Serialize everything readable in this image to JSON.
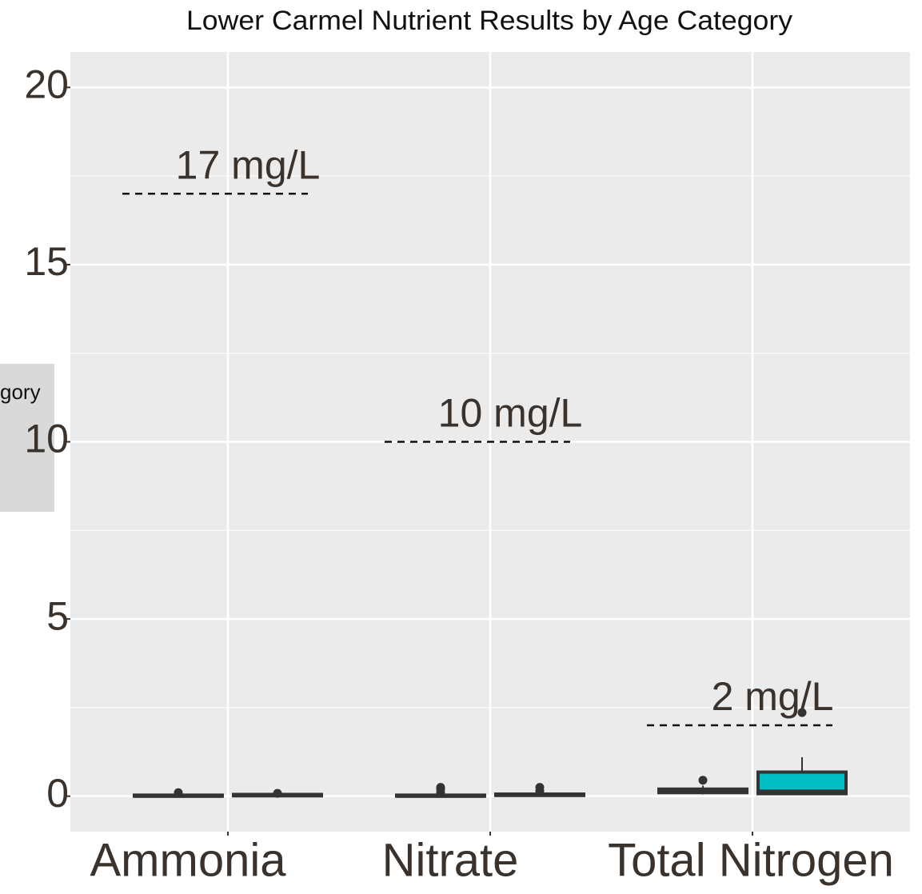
{
  "chart_data": {
    "type": "box",
    "title": "Lower Carmel Nutrient Results by Age Category",
    "legend_title": "gory",
    "categories": [
      "Ammonia",
      "Nitrate",
      "Total Nitrogen"
    ],
    "ylim": [
      -1,
      21
    ],
    "yticks": [
      0,
      5,
      10,
      15,
      20
    ],
    "grid": true,
    "series": [
      {
        "color": "#f8766d",
        "boxes": [
          {
            "whislo": 0,
            "q1": 0,
            "median": 0.01,
            "q3": 0.03,
            "whishi": 0.05,
            "outliers": [
              0.1
            ]
          },
          {
            "whislo": 0,
            "q1": 0,
            "median": 0.01,
            "q3": 0.03,
            "whishi": 0.05,
            "outliers": [
              0.1,
              0.2,
              0.25
            ]
          },
          {
            "whislo": 0.05,
            "q1": 0.1,
            "median": 0.15,
            "q3": 0.2,
            "whishi": 0.3,
            "outliers": [
              0.45
            ]
          }
        ]
      },
      {
        "color": "#00bfc4",
        "boxes": [
          {
            "whislo": 0,
            "q1": 0.01,
            "median": 0.03,
            "q3": 0.05,
            "whishi": 0.07,
            "outliers": [
              0.08
            ]
          },
          {
            "whislo": 0,
            "q1": 0.02,
            "median": 0.04,
            "q3": 0.06,
            "whishi": 0.08,
            "outliers": [
              0.15,
              0.25
            ]
          },
          {
            "whislo": 0.05,
            "q1": 0.07,
            "median": 0.13,
            "q3": 0.68,
            "whishi": 1.1,
            "outliers": [
              2.36
            ]
          }
        ]
      }
    ],
    "references": [
      {
        "value": 17,
        "label": "17 mg/L"
      },
      {
        "value": 10,
        "label": "10 mg/L"
      },
      {
        "value": 2,
        "label": "2 mg/L"
      }
    ]
  }
}
